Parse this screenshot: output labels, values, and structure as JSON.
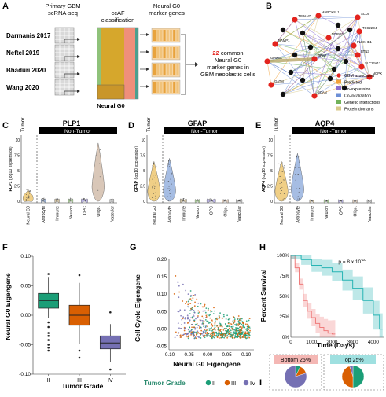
{
  "panels": {
    "A": {
      "letter": "A",
      "headers": [
        "Primary GBM\nscRNA-seq",
        "ccAF\nclassification",
        "Neural G0\nmarker genes"
      ],
      "datasets": [
        "Darmanis 2017",
        "Neftel 2019",
        "Bhaduri 2020",
        "Wang 2020"
      ],
      "neural_g0_label": "Neural G0",
      "result_number": "22",
      "result_lines": [
        " common",
        "Neural G0",
        "marker genes in",
        "GBM neoplastic cells"
      ]
    },
    "B": {
      "letter": "B",
      "nodes_red": [
        "MARCKSL1",
        "TSPAN7",
        "SCD5",
        "TSC22D4",
        "RAMP1",
        "GPM6A",
        "NDRG2",
        "GFAP",
        "PLEKHB1",
        "BTN3",
        "GATM",
        "HOPX",
        "SLC22A17",
        "BCAN"
      ],
      "legend": [
        {
          "label": "GBM associated",
          "color": "#e3241e"
        },
        {
          "label": "Predicted",
          "color": "#f2a23a"
        },
        {
          "label": "Co-expression",
          "color": "#8b6fd0"
        },
        {
          "label": "Co-localization",
          "color": "#6d8fd6"
        },
        {
          "label": "Genetic interactions",
          "color": "#71b25a"
        },
        {
          "label": "Protein domains",
          "color": "#d8c98a"
        }
      ]
    },
    "violins": [
      {
        "letter": "C",
        "gene": "PLP1",
        "ylabel_gene": "PLP1",
        "ylabel_rest": " (log10 expression)"
      },
      {
        "letter": "D",
        "gene": "GFAP",
        "ylabel_gene": "GFAP",
        "ylabel_rest": " (log10 expression)"
      },
      {
        "letter": "E",
        "gene": "AQP4",
        "ylabel_gene": "AQP4",
        "ylabel_rest": " (log10 expression)"
      }
    ],
    "violin_common": {
      "tumor": "Tumor",
      "non_tumor": "Non-Tumor",
      "yticks": [
        "0",
        "2.5",
        "5",
        "7.5",
        "10"
      ],
      "categories": [
        "Neural G0",
        "Astrocyte",
        "Immune",
        "Neuron",
        "OPC",
        "Oligo.",
        "Vascular"
      ]
    },
    "F": {
      "letter": "F",
      "ylabel": "Neural G0 Eigengene",
      "xlabel": "Tumor Grade",
      "yticks": [
        "0.10",
        "0.05",
        "0.00",
        "-0.05",
        "-0.10"
      ],
      "categories": [
        "II",
        "III",
        "IV"
      ]
    },
    "G": {
      "letter": "G",
      "ylabel": "Cell Cycle Eigengene",
      "xlabel": "Neural G0 Eigengene",
      "yticks": [
        "0.20",
        "0.15",
        "0.10",
        "0.05",
        "0.00",
        "-0.05"
      ],
      "xticks": [
        "-0.10",
        "-0.05",
        "0.00",
        "0.05",
        "0.10"
      ],
      "legend_title": "Tumor Grade",
      "legend_items": [
        "II",
        "III",
        "IV"
      ]
    },
    "H": {
      "letter": "H",
      "ylabel": "Percent Survival",
      "xlabel": "Time (Days)",
      "yticks": [
        "100%",
        "75%",
        "50%",
        "25%",
        "0%"
      ],
      "xticks": [
        "0",
        "1000",
        "2000",
        "3000",
        "4000"
      ],
      "pvalue": "p = 8 x 10",
      "pvalue_exp": "-10"
    },
    "I": {
      "letter": "I",
      "bottom_label": "Bottom 25%",
      "top_label": "Top 25%"
    }
  },
  "colors": {
    "grade_II": "#1b9e77",
    "grade_III": "#d95f02",
    "grade_IV": "#7570b3",
    "survival_bottom": "#ef7b7b",
    "survival_top": "#27b4b4",
    "accent_red": "#e3241e"
  },
  "chart_data": [
    {
      "type": "box",
      "panel": "F",
      "categories": [
        "II",
        "III",
        "IV"
      ],
      "median": [
        0.025,
        0.0,
        -0.047
      ],
      "q1": [
        0.012,
        -0.017,
        -0.057
      ],
      "q3": [
        0.037,
        0.017,
        -0.035
      ],
      "whisker_low": [
        -0.005,
        -0.048,
        -0.08
      ],
      "whisker_high": [
        0.065,
        0.055,
        -0.015
      ],
      "xlabel": "Tumor Grade",
      "ylabel": "Neural G0 Eigengene",
      "ylim": [
        -0.1,
        0.1
      ]
    },
    {
      "type": "scatter",
      "panel": "G",
      "xlabel": "Neural G0 Eigengene",
      "ylabel": "Cell Cycle Eigengene",
      "xlim": [
        -0.1,
        0.12
      ],
      "ylim": [
        -0.06,
        0.2
      ],
      "legend": "bottom"
    },
    {
      "type": "line",
      "panel": "H",
      "xlabel": "Time (Days)",
      "ylabel": "Percent Survival",
      "xlim": [
        0,
        4500
      ],
      "ylim": [
        0,
        100
      ],
      "series": [
        {
          "name": "Bottom 25%",
          "x": [
            0,
            200,
            400,
            600,
            800,
            1000,
            1200,
            1400,
            1600,
            1800,
            2000
          ],
          "y": [
            100,
            85,
            65,
            45,
            32,
            24,
            17,
            12,
            8,
            5,
            4
          ]
        },
        {
          "name": "Top 25%",
          "x": [
            0,
            500,
            1000,
            1500,
            2000,
            2500,
            3000,
            3500,
            4000,
            4300
          ],
          "y": [
            100,
            95,
            88,
            85,
            80,
            70,
            60,
            45,
            27,
            10
          ]
        }
      ]
    },
    {
      "type": "pie",
      "panel": "I",
      "series": [
        {
          "name": "Bottom 25%",
          "labels": [
            "II",
            "III",
            "IV"
          ],
          "values": [
            0.07,
            0.13,
            0.8
          ]
        },
        {
          "name": "Top 25%",
          "labels": [
            "II",
            "III",
            "IV"
          ],
          "values": [
            0.5,
            0.45,
            0.05
          ]
        }
      ]
    }
  ]
}
